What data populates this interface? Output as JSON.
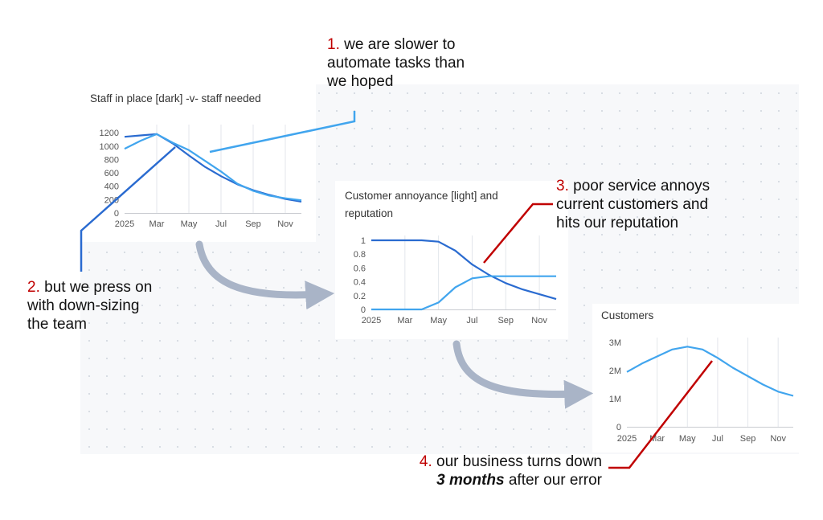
{
  "colors": {
    "dark_line": "#2a6bd0",
    "light_line": "#41a5ee",
    "red": "#c00000",
    "arrow": "#a9b4c7"
  },
  "notes": [
    {
      "num": "1.",
      "lines": [
        "we are slower to",
        "automate tasks than",
        "we hoped"
      ]
    },
    {
      "num": "2.",
      "lines": [
        "but we press on",
        "with down-sizing",
        "the team"
      ]
    },
    {
      "num": "3.",
      "lines": [
        "poor service annoys",
        "current customers and",
        "hits our reputation"
      ]
    },
    {
      "num": "4.",
      "lines": [
        "our business turns down",
        "3 months",
        "after our error"
      ]
    }
  ],
  "chart_data": [
    {
      "type": "line",
      "title": "Staff in place [dark] -v- staff needed",
      "x_tick_labels": [
        "2025",
        "Mar",
        "May",
        "Jul",
        "Sep",
        "Nov"
      ],
      "y_tick_labels": [
        "0",
        "200",
        "400",
        "600",
        "800",
        "1000",
        "1200"
      ],
      "ylim": [
        0,
        1250
      ],
      "x": [
        0,
        1,
        2,
        3,
        4,
        5,
        6,
        7,
        8,
        9,
        10,
        11
      ],
      "series": [
        {
          "values": [
            1140,
            1160,
            1180,
            1040,
            860,
            690,
            550,
            430,
            340,
            270,
            210,
            170
          ]
        },
        {
          "values": [
            960,
            1080,
            1180,
            1050,
            940,
            780,
            620,
            440,
            330,
            260,
            220,
            190
          ]
        }
      ],
      "grid": true
    },
    {
      "type": "line",
      "title": "Customer annoyance [light] and reputation",
      "x_tick_labels": [
        "2025",
        "Mar",
        "May",
        "Jul",
        "Sep",
        "Nov"
      ],
      "y_tick_labels": [
        "0",
        "0.2",
        "0.4",
        "0.6",
        "0.8",
        "1"
      ],
      "ylim": [
        0,
        1
      ],
      "x": [
        0,
        1,
        2,
        3,
        4,
        5,
        6,
        7,
        8,
        9,
        10,
        11
      ],
      "series": [
        {
          "values": [
            1,
            1,
            1,
            1,
            0.98,
            0.85,
            0.65,
            0.5,
            0.38,
            0.29,
            0.22,
            0.15
          ]
        },
        {
          "values": [
            0,
            0,
            0,
            0,
            0.1,
            0.32,
            0.45,
            0.48,
            0.48,
            0.48,
            0.48,
            0.48
          ]
        }
      ],
      "grid": true
    },
    {
      "type": "line",
      "title": "Customers",
      "x_tick_labels": [
        "2025",
        "Mar",
        "May",
        "Jul",
        "Sep",
        "Nov"
      ],
      "y_tick_labels": [
        "0",
        "1M",
        "2M",
        "3M"
      ],
      "ylim": [
        0,
        3000000
      ],
      "x": [
        0,
        1,
        2,
        3,
        4,
        5,
        6,
        7,
        8,
        9,
        10,
        11
      ],
      "series": [
        {
          "values": [
            1950000,
            2250000,
            2500000,
            2750000,
            2850000,
            2750000,
            2450000,
            2100000,
            1800000,
            1500000,
            1250000,
            1100000
          ]
        }
      ],
      "grid": true
    }
  ]
}
